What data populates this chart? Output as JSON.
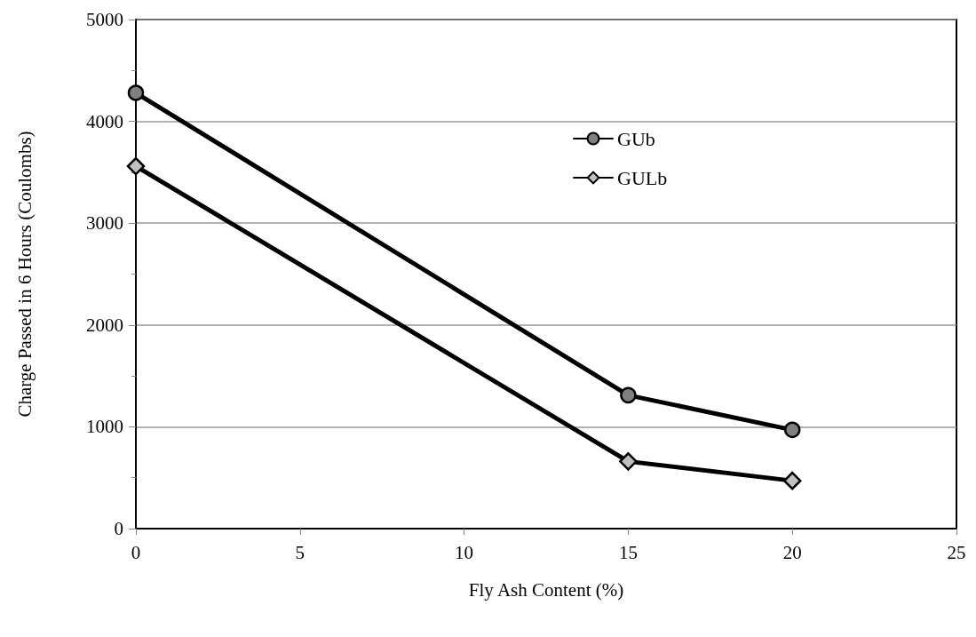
{
  "chart_data": {
    "type": "line",
    "xlabel": "Fly Ash Content (%)",
    "ylabel": "Charge Passed in 6 Hours (Coulombs)",
    "x": [
      0,
      15,
      20
    ],
    "series": [
      {
        "name": "GUb",
        "color": "#808080",
        "marker": "circle",
        "values": [
          4280,
          1310,
          970
        ]
      },
      {
        "name": "GULb",
        "color": "#c0c0c0",
        "marker": "diamond",
        "values": [
          3560,
          660,
          470
        ]
      }
    ],
    "xlim": [
      0,
      25
    ],
    "xticks": [
      0,
      5,
      10,
      15,
      20,
      25
    ],
    "ylim": [
      0,
      5000
    ],
    "yticks": [
      0,
      1000,
      2000,
      3000,
      4000,
      5000
    ],
    "grid": "y",
    "legend": "top right",
    "line_style": "solid"
  }
}
